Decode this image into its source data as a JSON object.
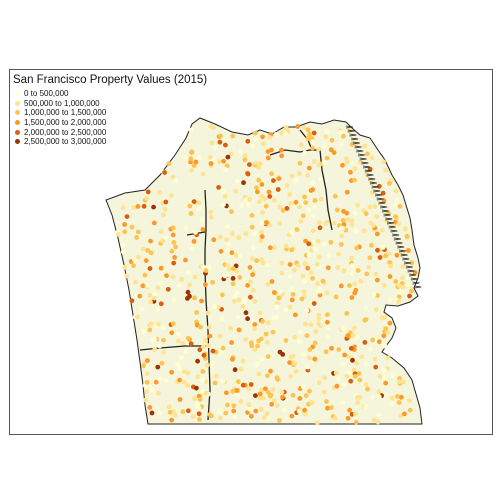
{
  "title": "San Francisco Property Values (2015)",
  "legend": {
    "entries": [
      {
        "label": "0 to 500,000",
        "color": "#ffffd4"
      },
      {
        "label": "500,000 to 1,000,000",
        "color": "#fee391"
      },
      {
        "label": "1,000,000 to 1,500,000",
        "color": "#fec44f"
      },
      {
        "label": "1,500,000 to 2,000,000",
        "color": "#fe9929"
      },
      {
        "label": "2,000,000 to 2,500,000",
        "color": "#d95f0e"
      },
      {
        "label": "2,500,000 to 3,000,000",
        "color": "#993404"
      }
    ]
  },
  "map": {
    "land_color": "#f5f5dc",
    "outline_color": "#222222",
    "point_count": 900
  }
}
